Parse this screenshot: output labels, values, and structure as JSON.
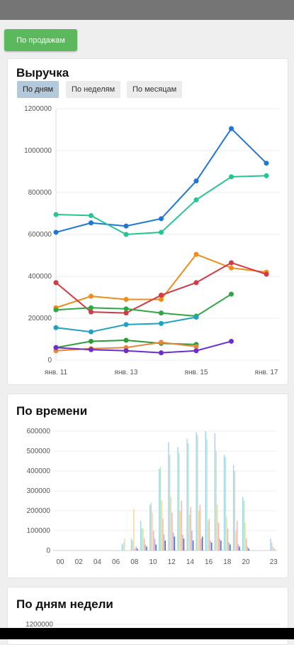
{
  "sales_button": "По продажам",
  "revenue": {
    "title": "Выручка",
    "tabs": [
      "По дням",
      "По неделям",
      "По месяцам"
    ],
    "active_tab": 0
  },
  "time": {
    "title": "По времени"
  },
  "weekdays": {
    "title": "По дням недели",
    "first_tick": "1200000"
  },
  "colors": {
    "button": "#5cb85c",
    "active_tab": "#b3c8d8"
  },
  "chart_data": [
    {
      "type": "line",
      "title": "",
      "ylim": [
        0,
        1200000
      ],
      "y_ticks": [
        "0",
        "200000",
        "400000",
        "600000",
        "800000",
        "1000000",
        "1200000"
      ],
      "x_ticks": [
        "янв. 11",
        "янв. 13",
        "янв. 15",
        "янв. 17"
      ],
      "x": [
        "янв. 11",
        "янв. 12",
        "янв. 13",
        "янв. 14",
        "янв. 15",
        "янв. 16",
        "янв. 17"
      ],
      "series": [
        {
          "color": "#1e77d6",
          "values": [
            610000,
            655000,
            640000,
            675000,
            855000,
            1105000,
            940000
          ]
        },
        {
          "color": "#27c493",
          "values": [
            695000,
            690000,
            600000,
            610000,
            765000,
            875000,
            880000
          ]
        },
        {
          "color": "#ef8c1a",
          "values": [
            250000,
            305000,
            290000,
            290000,
            505000,
            440000,
            420000
          ]
        },
        {
          "color": "#d43a44",
          "values": [
            370000,
            230000,
            225000,
            310000,
            370000,
            465000,
            410000
          ]
        },
        {
          "color": "#2fa843",
          "values": [
            240000,
            250000,
            245000,
            225000,
            210000,
            315000,
            null
          ]
        },
        {
          "color": "#1fa0c4",
          "values": [
            155000,
            135000,
            170000,
            175000,
            205000,
            null,
            null
          ]
        },
        {
          "color": "#2c9c3a",
          "values": [
            60000,
            90000,
            95000,
            80000,
            75000,
            null,
            null
          ]
        },
        {
          "color": "#e6873a",
          "values": [
            45000,
            55000,
            60000,
            85000,
            65000,
            null,
            null
          ]
        },
        {
          "color": "#6b2ecf",
          "values": [
            60000,
            50000,
            45000,
            35000,
            45000,
            90000,
            null
          ]
        }
      ]
    },
    {
      "type": "bar",
      "title": "",
      "ylim": [
        0,
        600000
      ],
      "y_ticks": [
        "0",
        "100000",
        "200000",
        "300000",
        "400000",
        "500000",
        "600000"
      ],
      "x_ticks": [
        "00",
        "02",
        "04",
        "06",
        "08",
        "10",
        "12",
        "14",
        "16",
        "18",
        "20",
        "23"
      ],
      "x_tick_hours": [
        0,
        2,
        4,
        6,
        8,
        10,
        12,
        14,
        16,
        18,
        20,
        23
      ],
      "hours": [
        "00",
        "01",
        "02",
        "03",
        "04",
        "05",
        "06",
        "07",
        "08",
        "09",
        "10",
        "11",
        "12",
        "13",
        "14",
        "15",
        "16",
        "17",
        "18",
        "19",
        "20",
        "21",
        "22",
        "23"
      ],
      "series": [
        {
          "color": "#9fd6e8",
          "values": [
            0,
            0,
            0,
            0,
            0,
            0,
            0,
            30000,
            60000,
            150000,
            230000,
            410000,
            545000,
            520000,
            560000,
            595000,
            600000,
            590000,
            480000,
            430000,
            270000,
            0,
            0,
            60000
          ]
        },
        {
          "color": "#b6e3c8",
          "values": [
            0,
            0,
            0,
            0,
            0,
            0,
            0,
            40000,
            50000,
            110000,
            240000,
            420000,
            480000,
            490000,
            540000,
            580000,
            560000,
            500000,
            470000,
            400000,
            250000,
            0,
            0,
            40000
          ]
        },
        {
          "color": "#f3d6a1",
          "values": [
            0,
            0,
            0,
            0,
            0,
            0,
            0,
            60000,
            210000,
            110000,
            190000,
            250000,
            270000,
            200000,
            180000,
            200000,
            150000,
            230000,
            170000,
            100000,
            140000,
            0,
            0,
            20000
          ]
        },
        {
          "color": "#f1b3b3",
          "values": [
            0,
            0,
            0,
            0,
            0,
            0,
            0,
            0,
            10000,
            60000,
            100000,
            160000,
            190000,
            250000,
            220000,
            230000,
            160000,
            140000,
            110000,
            150000,
            60000,
            0,
            0,
            10000
          ]
        },
        {
          "color": "#bfa9e6",
          "values": [
            0,
            0,
            0,
            0,
            0,
            0,
            0,
            0,
            20000,
            30000,
            60000,
            80000,
            90000,
            80000,
            100000,
            60000,
            50000,
            60000,
            40000,
            30000,
            20000,
            0,
            0,
            0
          ]
        },
        {
          "color": "#3a6fb5",
          "values": [
            0,
            0,
            0,
            0,
            0,
            0,
            0,
            0,
            10000,
            20000,
            30000,
            50000,
            70000,
            60000,
            50000,
            70000,
            40000,
            50000,
            30000,
            20000,
            10000,
            0,
            0,
            0
          ]
        }
      ]
    }
  ]
}
